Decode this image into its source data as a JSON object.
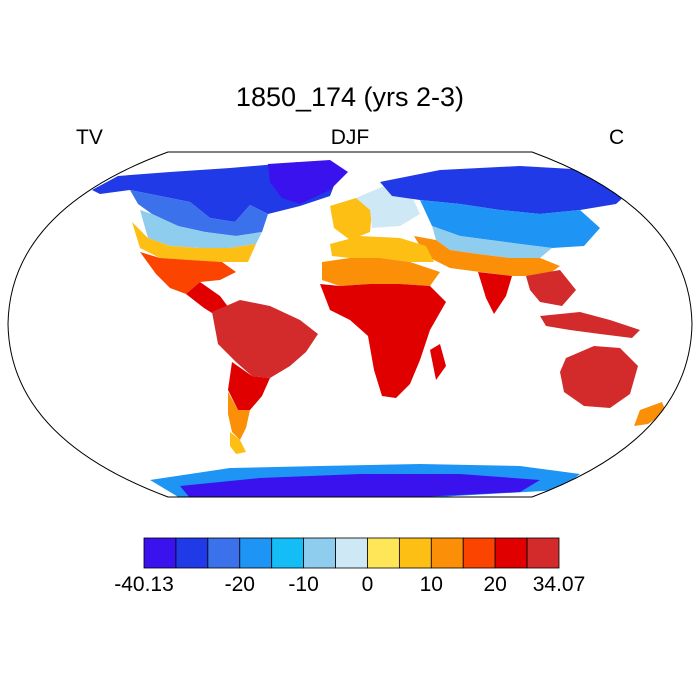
{
  "title": "1850_174 (yrs 2-3)",
  "labels": {
    "left": "TV",
    "center": "DJF",
    "right": "C"
  },
  "colorbar": {
    "colors": [
      "#3a12ee",
      "#1f3ae6",
      "#3b72ec",
      "#1e95f5",
      "#15bdf7",
      "#8fcdee",
      "#cfe8f6",
      "#ffe659",
      "#fdbf14",
      "#fb8f07",
      "#fb4400",
      "#e10000",
      "#d32b2b"
    ],
    "tick_labels": [
      "-40.13",
      "-20",
      "-10",
      "0",
      "10",
      "20",
      "34.07"
    ]
  },
  "map": {
    "projection": "Robinson",
    "variable": "TV",
    "units": "C",
    "season": "DJF"
  }
}
